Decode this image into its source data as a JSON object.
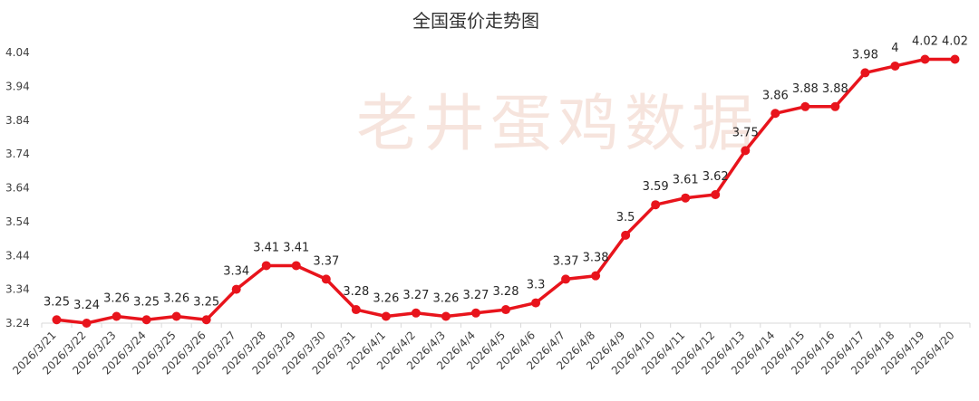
{
  "watermark": "老井蛋鸡数据",
  "colors": {
    "series": "#e8141c",
    "axis": "#d9d9d9",
    "text": "#404040"
  },
  "chart_data": {
    "type": "line",
    "title": "全国蛋价走势图",
    "xlabel": "",
    "ylabel": "",
    "ylim": [
      3.24,
      4.04
    ],
    "yticks": [
      "3.24",
      "3.34",
      "3.44",
      "3.54",
      "3.64",
      "3.74",
      "3.84",
      "3.94",
      "4.04"
    ],
    "grid": false,
    "legend": "none",
    "categories": [
      "2026/3/21",
      "2026/3/22",
      "2026/3/23",
      "2026/3/24",
      "2026/3/25",
      "2026/3/26",
      "2026/3/27",
      "2026/3/28",
      "2026/3/29",
      "2026/3/30",
      "2026/3/31",
      "2026/4/1",
      "2026/4/2",
      "2026/4/3",
      "2026/4/4",
      "2026/4/5",
      "2026/4/6",
      "2026/4/7",
      "2026/4/8",
      "2026/4/9",
      "2026/4/10",
      "2026/4/11",
      "2026/4/12",
      "2026/4/13",
      "2026/4/14",
      "2026/4/15",
      "2026/4/16",
      "2026/4/17",
      "2026/4/18",
      "2026/4/19",
      "2026/4/20"
    ],
    "series": [
      {
        "values": [
          3.25,
          3.24,
          3.26,
          3.25,
          3.26,
          3.25,
          3.34,
          3.41,
          3.41,
          3.37,
          3.28,
          3.26,
          3.27,
          3.26,
          3.27,
          3.28,
          3.3,
          3.37,
          3.38,
          3.5,
          3.59,
          3.61,
          3.62,
          3.75,
          3.86,
          3.88,
          3.88,
          3.98,
          4,
          4.02,
          4.02
        ],
        "labels": [
          "3.25",
          "3.24",
          "3.26",
          "3.25",
          "3.26",
          "3.25",
          "3.34",
          "3.41",
          "3.41",
          "3.37",
          "3.28",
          "3.26",
          "3.27",
          "3.26",
          "3.27",
          "3.28",
          "3.3",
          "3.37",
          "3.38",
          "3.5",
          "3.59",
          "3.61",
          "3.62",
          "3.75",
          "3.86",
          "3.88",
          "3.88",
          "3.98",
          "4",
          "4.02",
          "4.02"
        ]
      }
    ]
  }
}
